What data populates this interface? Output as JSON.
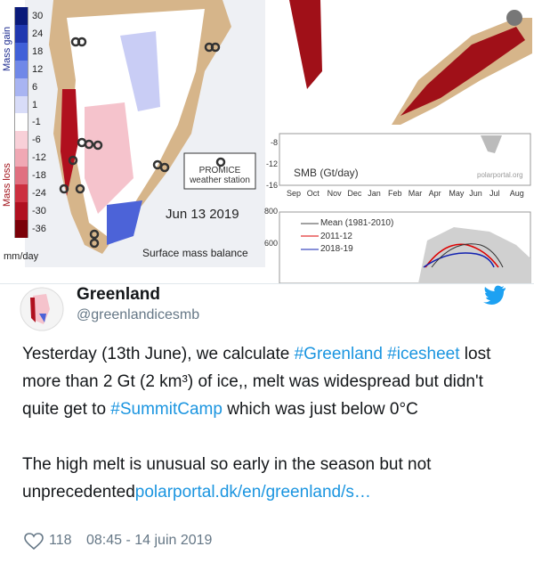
{
  "image": {
    "colorbar_labels": [
      "30",
      "24",
      "18",
      "12",
      "6",
      "1",
      "-1",
      "-6",
      "-12",
      "-18",
      "-24",
      "-30",
      "-36"
    ],
    "mass_gain": "Mass gain",
    "mass_loss": "Mass loss",
    "unit": "mm/day",
    "station": [
      "PROMICE",
      "weather station"
    ],
    "date": "Jun 13 2019",
    "caption": "Surface mass balance",
    "smb_chart": {
      "yticks": [
        "-8",
        "-12",
        "-16"
      ],
      "title": "SMB (Gt/day)",
      "source": "polarportal.org",
      "months": [
        "Sep",
        "Oct",
        "Nov",
        "Dec",
        "Jan",
        "Feb",
        "Mar",
        "Apr",
        "May",
        "Jun",
        "Jul",
        "Aug"
      ]
    },
    "melt_chart": {
      "yticks": [
        "800",
        "600"
      ],
      "legend": [
        "Mean (1981-2010)",
        "2011-12",
        "2018-19"
      ]
    }
  },
  "tweet": {
    "name": "Greenland",
    "handle": "@greenlandicesmb",
    "paragraphs": [
      [
        {
          "text": "Yesterday (13th June), we calculate "
        },
        {
          "link": "#Greenland"
        },
        {
          "text": " "
        },
        {
          "link": "#icesheet"
        },
        {
          "text": " lost more than 2 Gt (2 km³) of ice,, melt was widespread but didn't quite get to "
        },
        {
          "link": "#SummitCamp"
        },
        {
          "text": " which was just below 0°C"
        }
      ],
      [
        {
          "text": "The high melt is unusual so early in the season but not unprecedented"
        },
        {
          "link": "polarportal.dk/en/greenland/s…"
        }
      ]
    ],
    "likes": "118",
    "timestamp": "08:45 - 14 juin 2019"
  }
}
